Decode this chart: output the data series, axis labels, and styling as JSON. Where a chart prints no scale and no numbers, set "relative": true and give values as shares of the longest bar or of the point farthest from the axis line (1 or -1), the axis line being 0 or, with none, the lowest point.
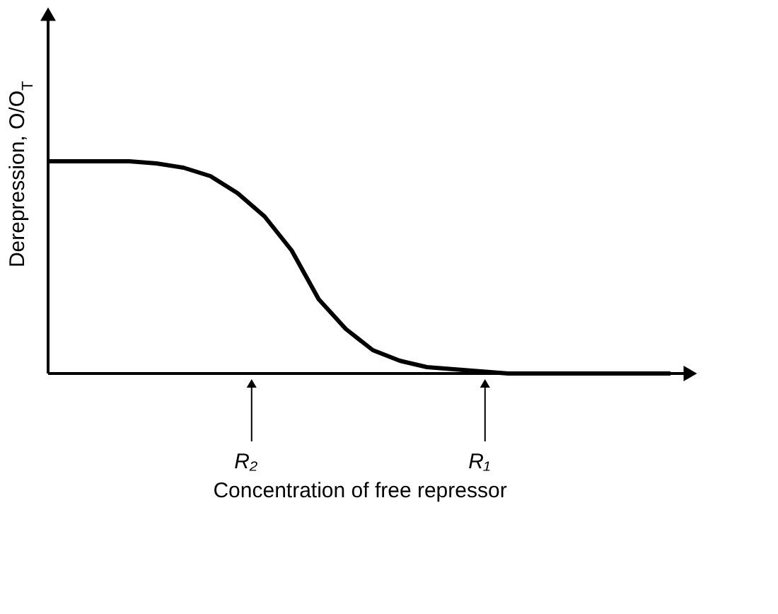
{
  "chart_data": {
    "type": "line",
    "relative": true,
    "xlabel": "Concentration of free repressor",
    "ylabel": "Derepression, O/O$_{T}$",
    "categories": [
      null,
      null,
      null,
      null,
      null,
      null,
      null,
      null,
      null,
      null,
      null,
      null,
      null,
      null,
      null,
      null,
      null,
      null,
      null,
      null,
      null,
      null,
      null,
      null
    ],
    "series": [
      {
        "color": "#000000",
        "values": [
          1,
          1,
          1,
          1,
          0.99,
          0.97,
          0.93,
          0.85,
          0.74,
          0.58,
          0.35,
          0.21,
          0.11,
          0.06,
          0.03,
          0.02,
          0.01,
          0,
          0,
          0,
          0,
          0,
          0,
          0
        ]
      }
    ],
    "annotations": [
      "R₂",
      "R₁"
    ],
    "marker": "none",
    "line_style": "solid",
    "grid": false,
    "legend": false
  }
}
